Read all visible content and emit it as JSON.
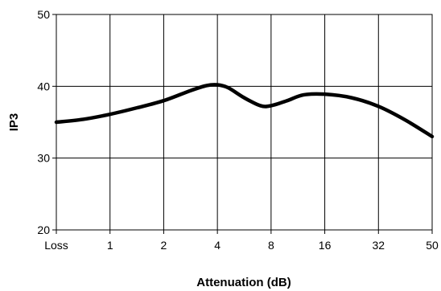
{
  "chart_data": {
    "type": "line",
    "title": "",
    "xlabel": "Attenuation (dB)",
    "ylabel": "IP3",
    "categories": [
      "Loss",
      "1",
      "2",
      "4",
      "8",
      "16",
      "32",
      "50"
    ],
    "ylim": [
      20,
      50
    ],
    "yticks": [
      "20",
      "30",
      "40",
      "50"
    ],
    "grid": true,
    "legend": "none",
    "line_color": "#000000",
    "series": [
      {
        "name": "",
        "x": [
          0,
          0.5,
          1,
          1.5,
          2,
          2.5,
          2.8,
          3,
          3.2,
          3.5,
          3.8,
          4,
          4.3,
          4.6,
          5,
          5.5,
          6,
          6.5,
          7
        ],
        "values": [
          35.0,
          35.4,
          36.1,
          37.0,
          38.0,
          39.4,
          40.1,
          40.2,
          39.8,
          38.4,
          37.3,
          37.3,
          38.0,
          38.8,
          38.9,
          38.4,
          37.2,
          35.3,
          33.0
        ]
      }
    ]
  }
}
